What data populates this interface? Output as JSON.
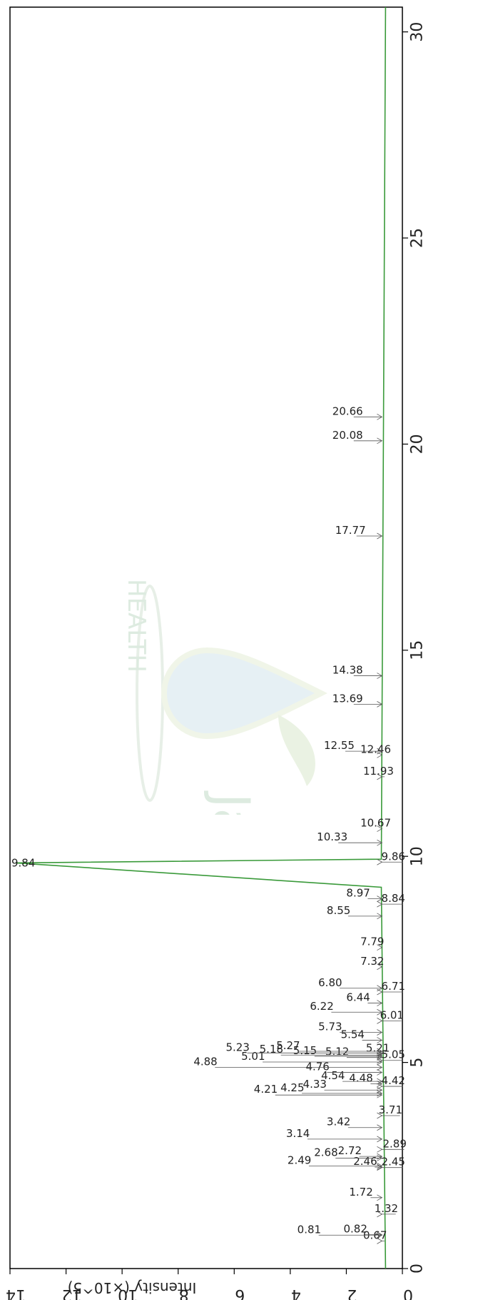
{
  "chart_data": {
    "type": "line",
    "title": "",
    "xlabel": "",
    "ylabel": "Intensity (×10^5)",
    "xlim": [
      0,
      30.6
    ],
    "ylim": [
      0,
      14
    ],
    "x_ticks": [
      "0",
      "5",
      "10",
      "15",
      "20",
      "25",
      "30"
    ],
    "y_ticks": [
      "0",
      "2",
      "4",
      "6",
      "8",
      "10",
      "12",
      "14"
    ],
    "grid": false,
    "line_color": "#3a9a3a",
    "baseline": 0.6,
    "series": [
      {
        "x": [
          0,
          9.25,
          9.84,
          9.93,
          30.6
        ],
        "y": [
          0.6,
          0.75,
          13.8,
          0.75,
          0.6
        ]
      }
    ],
    "peaks": [
      {
        "label": "0.67",
        "rt": 0.67,
        "y": 1.4
      },
      {
        "label": "0.81",
        "rt": 0.81,
        "y": 3.75
      },
      {
        "label": "0.82",
        "rt": 0.82,
        "y": 2.1
      },
      {
        "label": "1.32",
        "rt": 1.32,
        "y": 1.0
      },
      {
        "label": "1.72",
        "rt": 1.72,
        "y": 1.9
      },
      {
        "label": "2.45",
        "rt": 2.45,
        "y": 0.75
      },
      {
        "label": "2.46",
        "rt": 2.46,
        "y": 1.75
      },
      {
        "label": "2.49",
        "rt": 2.49,
        "y": 4.1
      },
      {
        "label": "2.68",
        "rt": 2.68,
        "y": 3.15
      },
      {
        "label": "2.72",
        "rt": 2.72,
        "y": 2.3
      },
      {
        "label": "2.89",
        "rt": 2.89,
        "y": 0.7
      },
      {
        "label": "3.14",
        "rt": 3.14,
        "y": 4.15
      },
      {
        "label": "3.42",
        "rt": 3.42,
        "y": 2.7
      },
      {
        "label": "3.71",
        "rt": 3.71,
        "y": 0.85
      },
      {
        "label": "4.21",
        "rt": 4.21,
        "y": 5.3
      },
      {
        "label": "4.25",
        "rt": 4.25,
        "y": 4.35
      },
      {
        "label": "4.33",
        "rt": 4.33,
        "y": 3.55
      },
      {
        "label": "4.42",
        "rt": 4.42,
        "y": 0.75
      },
      {
        "label": "4.48",
        "rt": 4.48,
        "y": 1.9
      },
      {
        "label": "4.54",
        "rt": 4.54,
        "y": 2.9
      },
      {
        "label": "4.76",
        "rt": 4.76,
        "y": 3.45
      },
      {
        "label": "4.88",
        "rt": 4.88,
        "y": 7.45
      },
      {
        "label": "5.01",
        "rt": 5.01,
        "y": 5.75
      },
      {
        "label": "5.05",
        "rt": 5.05,
        "y": 0.75
      },
      {
        "label": "5.12",
        "rt": 5.12,
        "y": 2.75
      },
      {
        "label": "5.15",
        "rt": 5.15,
        "y": 3.9
      },
      {
        "label": "5.18",
        "rt": 5.18,
        "y": 5.1
      },
      {
        "label": "5.21",
        "rt": 5.21,
        "y": 1.3
      },
      {
        "label": "5.23",
        "rt": 5.23,
        "y": 6.3
      },
      {
        "label": "5.27",
        "rt": 5.27,
        "y": 4.5
      },
      {
        "label": "5.54",
        "rt": 5.54,
        "y": 2.2
      },
      {
        "label": "5.73",
        "rt": 5.73,
        "y": 3.0
      },
      {
        "label": "6.01",
        "rt": 6.01,
        "y": 0.8
      },
      {
        "label": "6.22",
        "rt": 6.22,
        "y": 3.3
      },
      {
        "label": "6.44",
        "rt": 6.44,
        "y": 2.0
      },
      {
        "label": "6.71",
        "rt": 6.71,
        "y": 0.75
      },
      {
        "label": "6.80",
        "rt": 6.8,
        "y": 3.0
      },
      {
        "label": "7.32",
        "rt": 7.32,
        "y": 1.5
      },
      {
        "label": "7.79",
        "rt": 7.79,
        "y": 1.5
      },
      {
        "label": "8.55",
        "rt": 8.55,
        "y": 2.7
      },
      {
        "label": "8.84",
        "rt": 8.84,
        "y": 0.75
      },
      {
        "label": "8.97",
        "rt": 8.97,
        "y": 2.0
      },
      {
        "label": "9.84",
        "rt": 9.84,
        "y": 13.8
      },
      {
        "label": "9.86",
        "rt": 9.86,
        "y": 0.75
      },
      {
        "label": "10.33",
        "rt": 10.33,
        "y": 3.05
      },
      {
        "label": "10.67",
        "rt": 10.67,
        "y": 1.5
      },
      {
        "label": "11.93",
        "rt": 11.93,
        "y": 1.4
      },
      {
        "label": "12.46",
        "rt": 12.46,
        "y": 1.5
      },
      {
        "label": "12.55",
        "rt": 12.55,
        "y": 2.8
      },
      {
        "label": "13.69",
        "rt": 13.69,
        "y": 2.5
      },
      {
        "label": "14.38",
        "rt": 14.38,
        "y": 2.5
      },
      {
        "label": "17.77",
        "rt": 17.77,
        "y": 2.4
      },
      {
        "label": "20.08",
        "rt": 20.08,
        "y": 2.5
      },
      {
        "label": "20.66",
        "rt": 20.66,
        "y": 2.5
      }
    ]
  },
  "watermark": {
    "top_text": "Jad",
    "bottom_text": "HEALTH",
    "color": "#9fc7a8"
  }
}
